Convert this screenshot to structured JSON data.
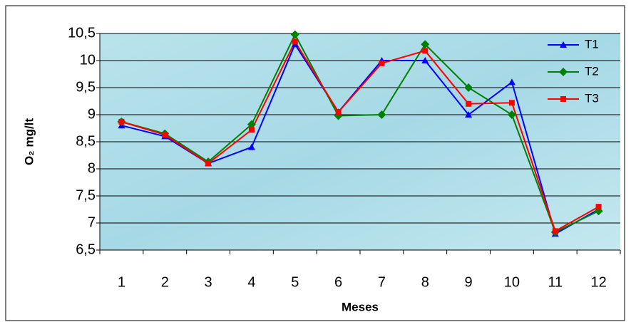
{
  "chart_data": {
    "type": "line",
    "x_label": "Meses",
    "y_label": "O₂ mg/lt",
    "categories": [
      "1",
      "2",
      "3",
      "4",
      "5",
      "6",
      "7",
      "8",
      "9",
      "10",
      "11",
      "12"
    ],
    "series": [
      {
        "name": "T1",
        "color": "#0000ff",
        "marker": "triangle",
        "values": [
          8.8,
          8.6,
          8.1,
          8.4,
          10.3,
          9.05,
          10.0,
          10.0,
          9.0,
          9.6,
          6.8,
          7.25
        ]
      },
      {
        "name": "T2",
        "color": "#008000",
        "marker": "diamond",
        "values": [
          8.87,
          8.65,
          8.13,
          8.82,
          10.48,
          8.98,
          9.0,
          10.3,
          9.5,
          9.0,
          6.83,
          7.22
        ]
      },
      {
        "name": "T3",
        "color": "#ff0000",
        "marker": "square",
        "values": [
          8.87,
          8.63,
          8.1,
          8.72,
          10.35,
          9.05,
          9.95,
          10.18,
          9.2,
          9.22,
          6.85,
          7.3
        ]
      }
    ],
    "ylim": [
      6.5,
      10.5
    ],
    "yticks": [
      {
        "value": 6.5,
        "label": "6,5"
      },
      7,
      {
        "value": 7.5,
        "label": "7,5"
      },
      8,
      {
        "value": 8.5,
        "label": "8,5"
      },
      9,
      {
        "value": 9.5,
        "label": "9,5"
      },
      10,
      {
        "value": 10.5,
        "label": "10,5"
      }
    ],
    "grid": true,
    "legend": "top-right"
  }
}
